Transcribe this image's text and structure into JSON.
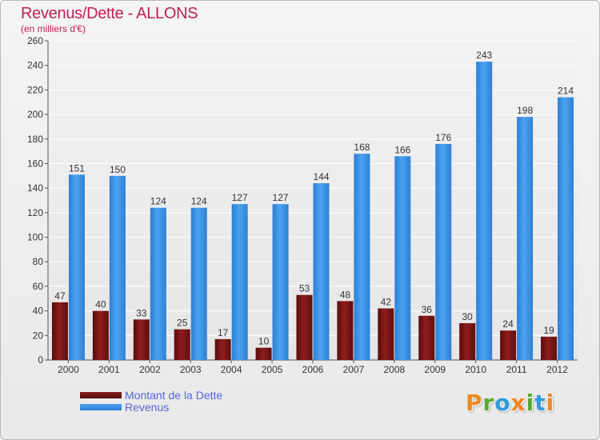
{
  "header": {
    "title": "Revenus/Dette - ALLONS",
    "subtitle": "(en milliers d'€)"
  },
  "chart_data": {
    "type": "bar",
    "categories": [
      "2000",
      "2001",
      "2002",
      "2003",
      "2004",
      "2005",
      "2006",
      "2007",
      "2008",
      "2009",
      "2010",
      "2011",
      "2012"
    ],
    "series": [
      {
        "name": "Montant de la Dette",
        "values": [
          47,
          40,
          33,
          25,
          17,
          10,
          53,
          48,
          42,
          36,
          30,
          24,
          19
        ],
        "color": "#7a1515"
      },
      {
        "name": "Revenus",
        "values": [
          151,
          150,
          124,
          124,
          127,
          127,
          144,
          168,
          166,
          176,
          243,
          198,
          214
        ],
        "color": "#3a8ee0"
      }
    ],
    "ylim": [
      0,
      260
    ],
    "yticks": [
      0,
      20,
      40,
      60,
      80,
      100,
      120,
      140,
      160,
      180,
      200,
      220,
      240,
      260
    ],
    "grid": true,
    "legend_position": "bottom-left"
  },
  "colors": {
    "title": "#c02058",
    "legend_text": "#5566dd"
  },
  "logo": {
    "text": "Proxiti",
    "letters": [
      {
        "ch": "P",
        "color": "#ee8822"
      },
      {
        "ch": "r",
        "color": "#55aa33"
      },
      {
        "ch": "o",
        "color": "#3399dd"
      },
      {
        "ch": "x",
        "color": "#ee8822"
      },
      {
        "ch": "i",
        "color": "#55aa33"
      },
      {
        "ch": "t",
        "color": "#3399dd"
      },
      {
        "ch": "i",
        "color": "#ee8822"
      }
    ]
  }
}
